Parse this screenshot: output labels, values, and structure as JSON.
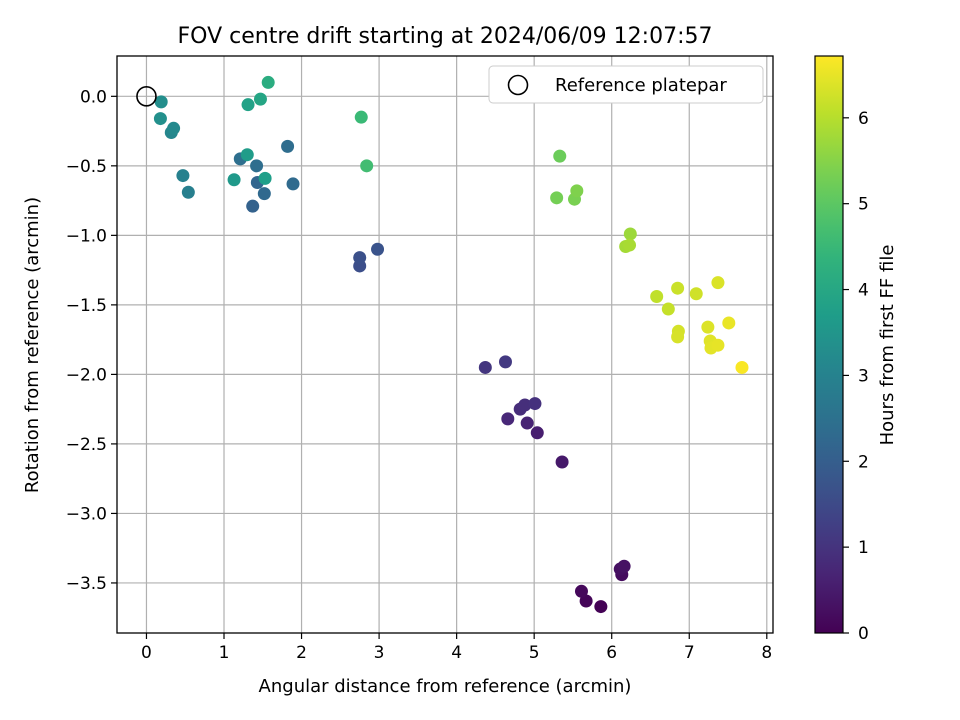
{
  "chart_data": {
    "type": "scatter",
    "title": "FOV centre drift starting at 2024/06/09 12:07:57",
    "xlabel": "Angular distance from reference (arcmin)",
    "ylabel": "Rotation from reference (arcmin)",
    "xlim": [
      -0.38,
      8.08
    ],
    "ylim": [
      -3.86,
      0.29
    ],
    "x_ticks": [
      0,
      1,
      2,
      3,
      4,
      5,
      6,
      7,
      8
    ],
    "x_tick_labels": [
      "0",
      "1",
      "2",
      "3",
      "4",
      "5",
      "6",
      "7",
      "8"
    ],
    "y_ticks": [
      0.0,
      -0.5,
      -1.0,
      -1.5,
      -2.0,
      -2.5,
      -3.0,
      -3.5
    ],
    "y_tick_labels": [
      "0.0",
      "−0.5",
      "−1.0",
      "−1.5",
      "−2.0",
      "−2.5",
      "−3.0",
      "−3.5"
    ],
    "grid": true,
    "legend": {
      "position": "top-right",
      "entries": [
        "Reference platepar"
      ]
    },
    "reference_point": {
      "x": 0.0,
      "y": 0.0,
      "label": "Reference platepar"
    },
    "colormap": "viridis",
    "colorbar": {
      "label": "Hours from first FF file",
      "range": [
        0,
        6.72
      ],
      "ticks": [
        0,
        1,
        2,
        3,
        4,
        5,
        6
      ],
      "tick_labels": [
        "0",
        "1",
        "2",
        "3",
        "4",
        "5",
        "6"
      ]
    },
    "point_fields": [
      "x",
      "y",
      "hours"
    ],
    "points": [
      [
        5.86,
        -3.67,
        0.02
      ],
      [
        5.67,
        -3.63,
        0.08
      ],
      [
        5.61,
        -3.56,
        0.14
      ],
      [
        6.13,
        -3.44,
        0.2
      ],
      [
        6.11,
        -3.4,
        0.26
      ],
      [
        6.16,
        -3.38,
        0.32
      ],
      [
        5.36,
        -2.63,
        0.45
      ],
      [
        5.04,
        -2.42,
        0.55
      ],
      [
        4.91,
        -2.35,
        0.65
      ],
      [
        4.66,
        -2.32,
        0.75
      ],
      [
        4.82,
        -2.25,
        0.85
      ],
      [
        4.88,
        -2.22,
        0.9
      ],
      [
        5.01,
        -2.21,
        0.95
      ],
      [
        4.37,
        -1.95,
        1.05
      ],
      [
        4.63,
        -1.91,
        1.12
      ],
      [
        2.75,
        -1.22,
        1.6
      ],
      [
        2.75,
        -1.16,
        1.65
      ],
      [
        2.98,
        -1.1,
        1.72
      ],
      [
        1.37,
        -0.79,
        2.08
      ],
      [
        1.43,
        -0.62,
        2.18
      ],
      [
        1.52,
        -0.7,
        2.28
      ],
      [
        1.89,
        -0.63,
        2.32
      ],
      [
        1.42,
        -0.5,
        2.4
      ],
      [
        1.21,
        -0.45,
        2.45
      ],
      [
        1.82,
        -0.36,
        2.38
      ],
      [
        0.54,
        -0.69,
        2.9
      ],
      [
        0.47,
        -0.57,
        2.95
      ],
      [
        0.32,
        -0.26,
        3.1
      ],
      [
        0.35,
        -0.23,
        3.18
      ],
      [
        0.19,
        -0.04,
        3.3
      ],
      [
        0.18,
        -0.16,
        3.35
      ],
      [
        1.13,
        -0.6,
        3.6
      ],
      [
        1.3,
        -0.42,
        3.68
      ],
      [
        1.53,
        -0.59,
        3.75
      ],
      [
        1.31,
        -0.06,
        3.85
      ],
      [
        1.47,
        -0.02,
        3.95
      ],
      [
        1.57,
        0.1,
        4.15
      ],
      [
        2.77,
        -0.15,
        4.55
      ],
      [
        2.84,
        -0.5,
        4.65
      ],
      [
        5.33,
        -0.43,
        5.2
      ],
      [
        5.29,
        -0.73,
        5.3
      ],
      [
        5.52,
        -0.74,
        5.35
      ],
      [
        5.55,
        -0.68,
        5.42
      ],
      [
        6.24,
        -0.99,
        5.72
      ],
      [
        6.18,
        -1.08,
        5.8
      ],
      [
        6.23,
        -1.07,
        5.85
      ],
      [
        6.58,
        -1.44,
        6.1
      ],
      [
        6.73,
        -1.53,
        6.15
      ],
      [
        6.85,
        -1.38,
        6.2
      ],
      [
        7.09,
        -1.42,
        6.25
      ],
      [
        6.86,
        -1.69,
        6.3
      ],
      [
        6.85,
        -1.73,
        6.33
      ],
      [
        7.37,
        -1.34,
        6.36
      ],
      [
        7.24,
        -1.66,
        6.38
      ],
      [
        7.27,
        -1.76,
        6.42
      ],
      [
        7.28,
        -1.81,
        6.45
      ],
      [
        7.37,
        -1.79,
        6.48
      ],
      [
        7.51,
        -1.63,
        6.52
      ],
      [
        7.68,
        -1.95,
        6.68
      ]
    ]
  }
}
